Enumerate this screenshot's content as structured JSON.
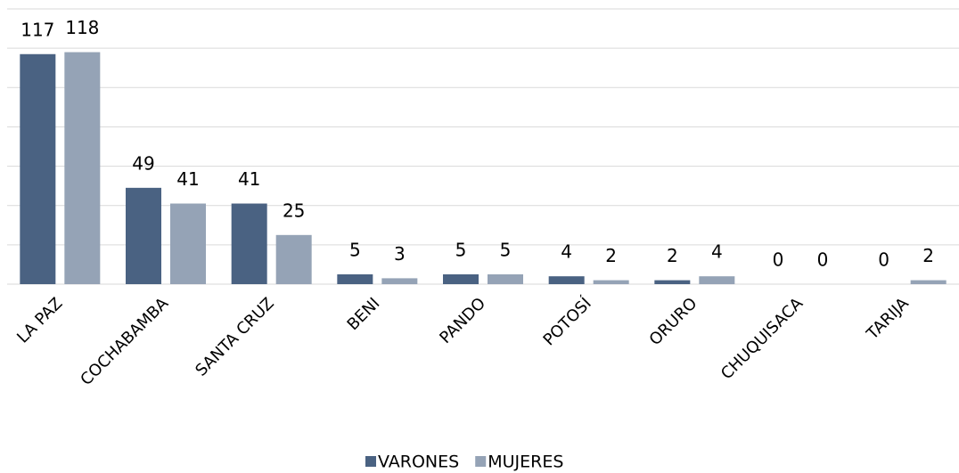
{
  "chart_data": {
    "type": "bar",
    "categories": [
      "LA PAZ",
      "COCHABAMBA",
      "SANTA CRUZ",
      "BENI",
      "PANDO",
      "POTOSÍ",
      "ORURO",
      "CHUQUISACA",
      "TARIJA"
    ],
    "series": [
      {
        "name": "VARONES",
        "color": "#4a6282",
        "values": [
          117,
          49,
          41,
          5,
          5,
          4,
          2,
          0,
          0
        ]
      },
      {
        "name": "MUJERES",
        "color": "#95a3b6",
        "values": [
          118,
          41,
          25,
          3,
          5,
          2,
          4,
          0,
          2
        ]
      }
    ],
    "ylim": [
      0,
      140
    ],
    "yticks": [
      0,
      20,
      40,
      60,
      80,
      100,
      120,
      140
    ],
    "grid": true,
    "legend": "bottom"
  }
}
